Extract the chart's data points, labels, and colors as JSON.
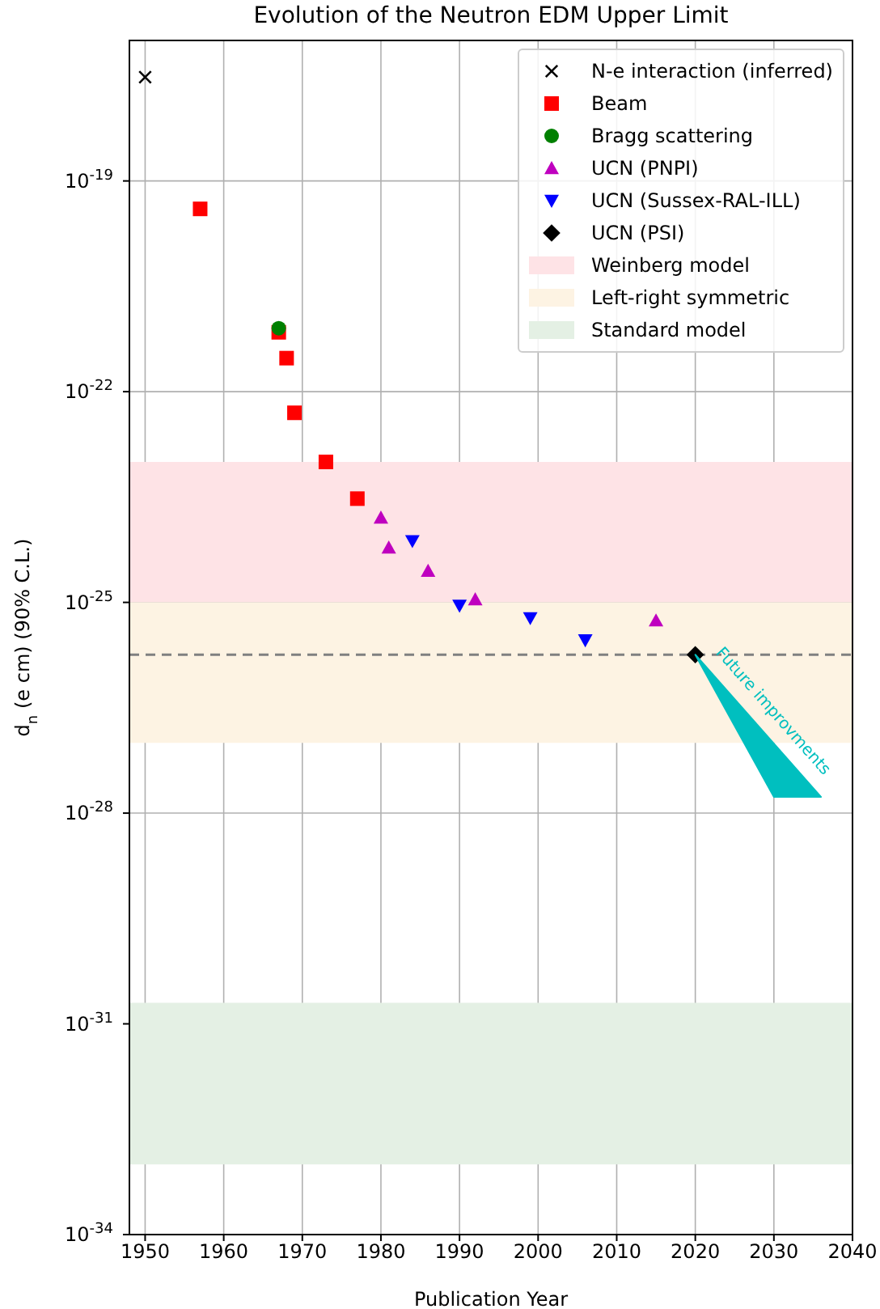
{
  "chart_data": {
    "type": "scatter",
    "title": "Evolution of the Neutron EDM Upper Limit",
    "xlabel": "Publication Year",
    "ylabel": "d$_{n}$ (e cm) (90% C.L.)",
    "log": "y",
    "grid": true,
    "legend": "top right",
    "xlim": [
      1948,
      2040
    ],
    "xticks": [
      1950,
      1960,
      1970,
      1980,
      1990,
      2000,
      2010,
      2020,
      2030,
      2040
    ],
    "ylim": [
      1e-34,
      1e-17
    ],
    "yticks": [
      {
        "value": 1e-19,
        "label": "10$^{-19}$"
      },
      {
        "value": 1e-22,
        "label": "10$^{-22}$"
      },
      {
        "value": 1e-25,
        "label": "10$^{-25}$"
      },
      {
        "value": 1e-28,
        "label": "10$^{-28}$"
      },
      {
        "value": 1e-31,
        "label": "10$^{-31}$"
      },
      {
        "value": 1e-34,
        "label": "10$^{-34}$"
      }
    ],
    "series": [
      {
        "name": "N-e interaction (inferred)",
        "color": "#000000",
        "marker": "cross",
        "x": [
          1950
        ],
        "values": [
          3e-18
        ]
      },
      {
        "name": "Beam",
        "color": "#ff0000",
        "marker": "square",
        "x": [
          1957,
          1967,
          1968,
          1969,
          1973,
          1977
        ],
        "values": [
          4e-20,
          7e-22,
          3e-22,
          5e-23,
          1e-23,
          3e-24
        ]
      },
      {
        "name": "Bragg scattering",
        "color": "#008000",
        "marker": "circle",
        "x": [
          1967
        ],
        "values": [
          8e-22
        ]
      },
      {
        "name": "UCN (PNPI)",
        "color": "#bf00bf",
        "marker": "triangle",
        "x": [
          1980,
          1981,
          1986,
          1992,
          2015
        ],
        "values": [
          1.6e-24,
          6e-25,
          2.8e-25,
          1.1e-25,
          5.5e-26
        ]
      },
      {
        "name": "UCN (Sussex-RAL-ILL)",
        "color": "#0000ff",
        "marker": "triangle-down",
        "x": [
          1984,
          1990,
          1999,
          2006
        ],
        "values": [
          7.5e-25,
          9e-26,
          6e-26,
          2.9e-26
        ]
      },
      {
        "name": "UCN (PSI)",
        "color": "#000000",
        "marker": "diamond",
        "x": [
          2020
        ],
        "values": [
          1.8e-26
        ]
      },
      {
        "type": "area",
        "color": "#00bfbf",
        "x": [
          2020,
          2030,
          2036
        ],
        "values": [
          1.8e-26,
          1.7e-28,
          1.7e-28
        ]
      }
    ],
    "bands": [
      {
        "axis": "y",
        "from": 1e-25,
        "to": 1e-23,
        "label": "Weinberg model",
        "color": "#fee3e6"
      },
      {
        "axis": "y",
        "from": 1e-27,
        "to": 1e-25,
        "label": "Left-right symmetric",
        "color": "#fdf3e3"
      },
      {
        "axis": "y",
        "from": 1e-33,
        "to": 2e-31,
        "label": "Standard model",
        "color": "#e4f0e4"
      }
    ],
    "ref_lines": [
      {
        "axis": "y",
        "value": 1.8e-26,
        "color": "#808080",
        "line_style": "dashed"
      }
    ],
    "annotations": [
      "Future improvments"
    ]
  }
}
